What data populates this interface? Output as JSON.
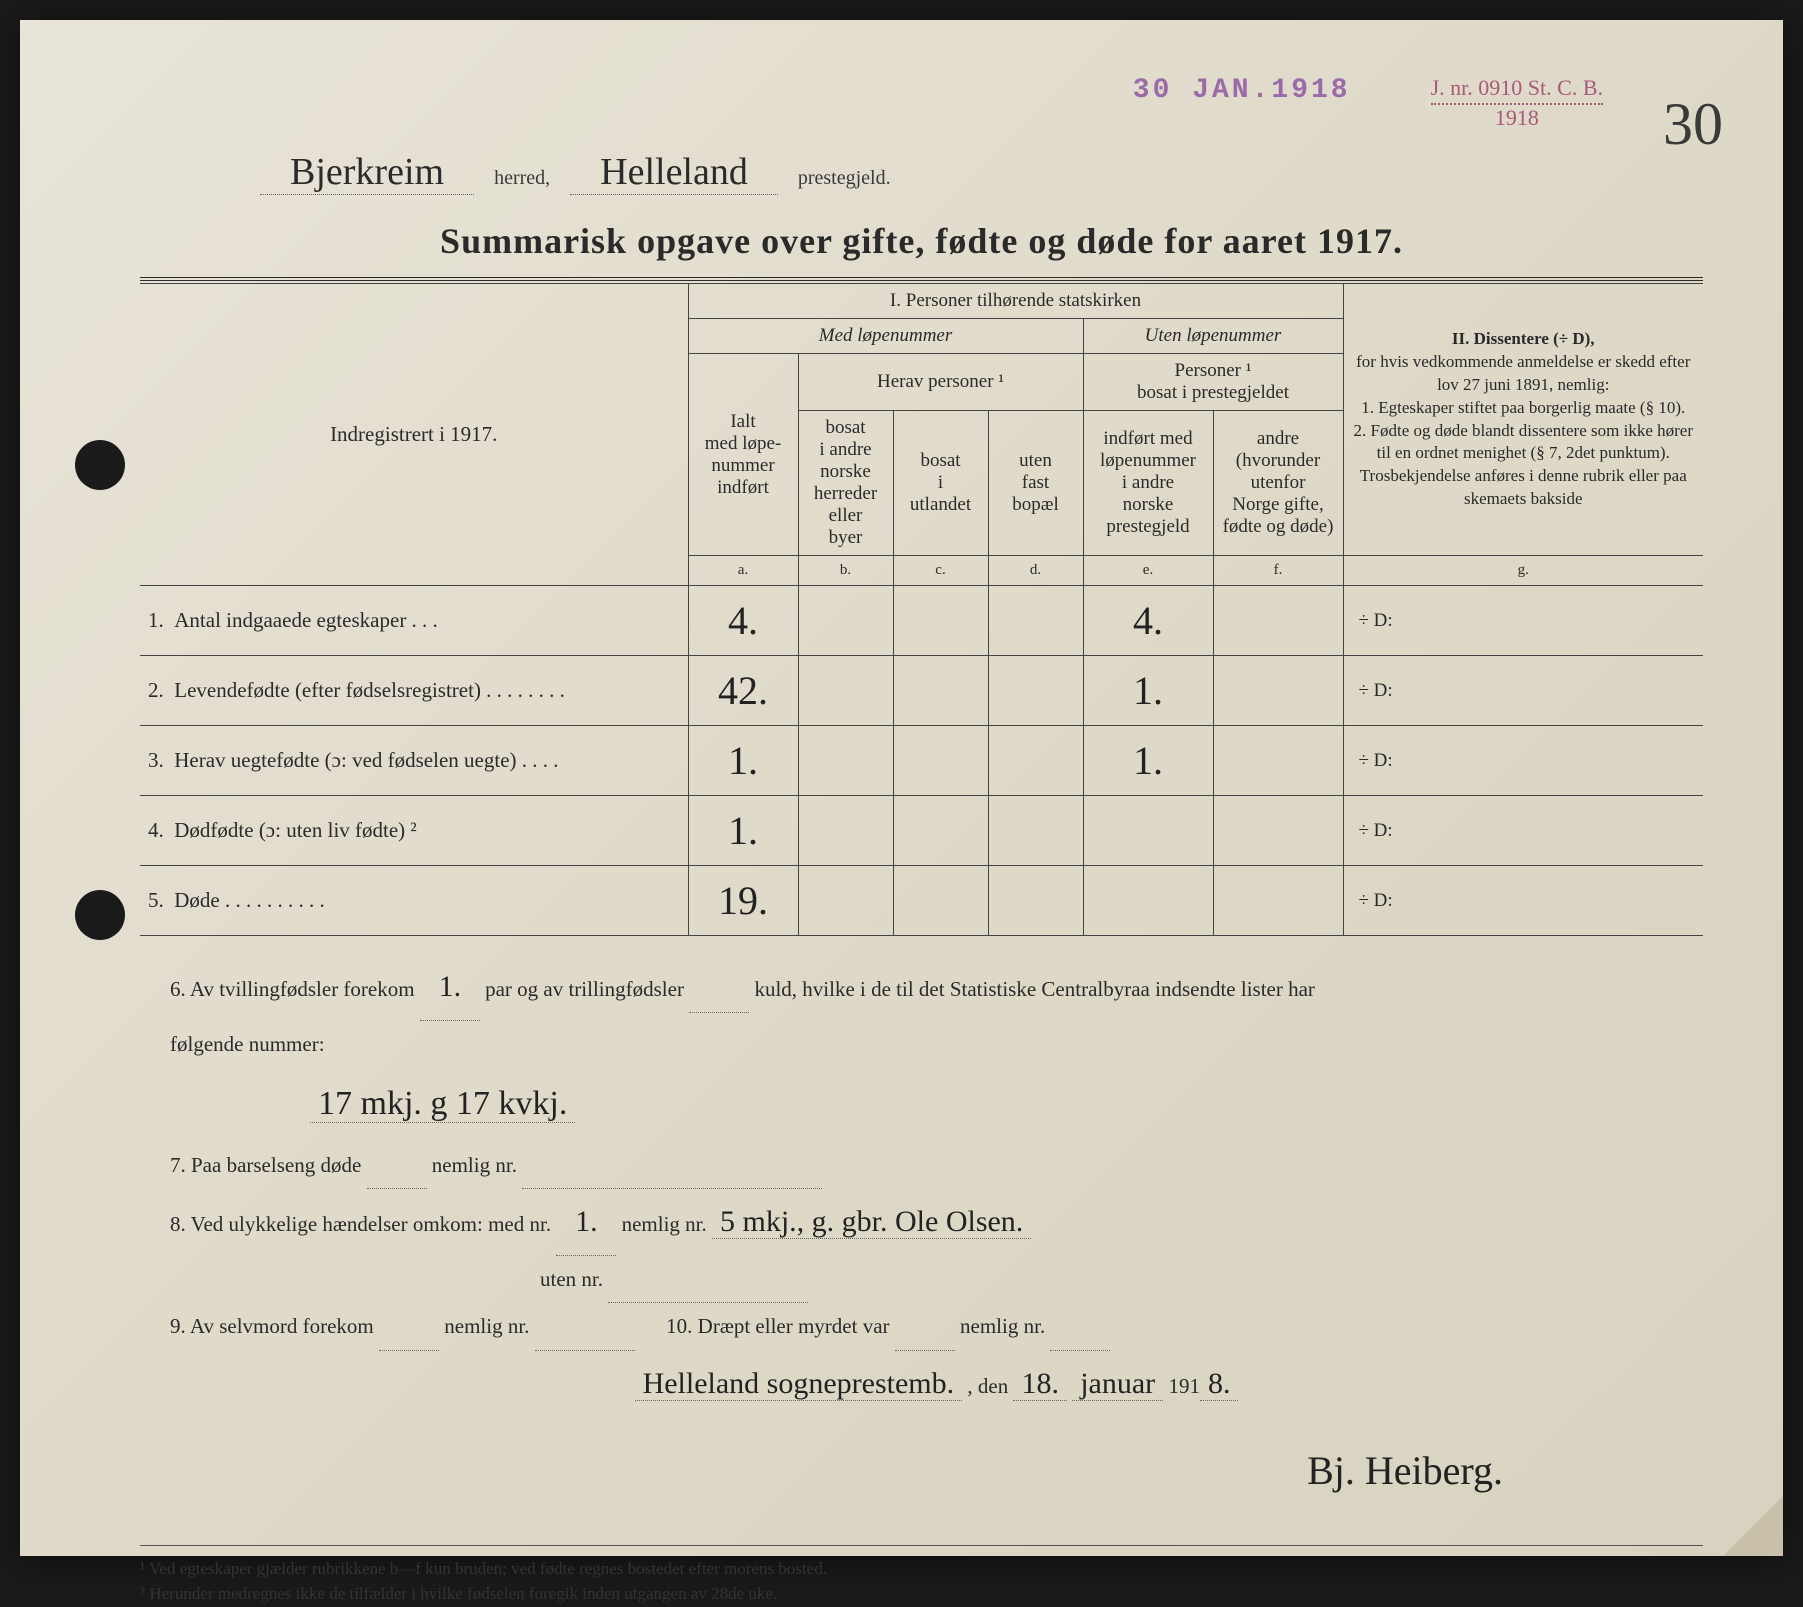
{
  "stamps": {
    "date": "30 JAN.1918",
    "jnr_top": "J. nr. 0910 St. C. B.",
    "jnr_bottom": "1918"
  },
  "page_number": "30",
  "header": {
    "herred_value": "Bjerkreim",
    "herred_label": "herred,",
    "prestegjeld_value": "Helleland",
    "prestegjeld_label": "prestegjeld."
  },
  "title": "Summarisk opgave over gifte, fødte og døde for aaret 1917.",
  "table": {
    "left_header": "Indregistrert i 1917.",
    "section_I": "I.  Personer tilhørende statskirken",
    "med_lopenummer": "Med løpenummer",
    "uten_lopenummer": "Uten løpenummer",
    "herav_personer": "Herav personer ¹",
    "personer_bosat": "Personer ¹\nbosat i prestegjeldet",
    "section_II_title": "II.  Dissentere (÷ D),",
    "section_II_body": "for hvis vedkommende anmeldelse er skedd efter lov 27 juni 1891, nemlig:\n1. Egteskaper stiftet paa borgerlig maate (§ 10).\n2. Fødte og døde blandt dissentere som ikke hører til en ordnet menighet (§ 7, 2det punktum).\nTrosbekjendelse anføres i denne rubrik eller paa skemaets bakside",
    "col_a": "Ialt\nmed løpe-\nnummer\nindført",
    "col_b": "bosat\ni andre\nnorske\nherreder\neller\nbyer",
    "col_c": "bosat\ni\nutlandet",
    "col_d": "uten\nfast\nbopæl",
    "col_e": "indført med\nløpenummer\ni andre\nnorske\nprestegjeld",
    "col_f": "andre\n(hvorunder\nutenfor\nNorge gifte,\nfødte og døde)",
    "letters": {
      "a": "a.",
      "b": "b.",
      "c": "c.",
      "d": "d.",
      "e": "e.",
      "f": "f.",
      "g": "g."
    },
    "rows": [
      {
        "n": "1.",
        "label": "Antal indgaaede egteskaper  .  .  .",
        "a": "4.",
        "e": "4.",
        "g": "÷ D:"
      },
      {
        "n": "2.",
        "label": "Levendefødte (efter fødselsregistret)  .  .  .  .  .  .  .  .",
        "a": "42.",
        "e": "1.",
        "g": "÷ D:"
      },
      {
        "n": "3.",
        "label": "Herav uegtefødte (ɔ: ved fødselen uegte)  .  .  .  .",
        "a": "1.",
        "e": "1.",
        "g": "÷ D:"
      },
      {
        "n": "4.",
        "label": "Dødfødte (ɔ: uten liv fødte) ²",
        "a": "1.",
        "e": "",
        "g": "÷ D:"
      },
      {
        "n": "5.",
        "label": "Døde  .  .  .  .  .  .  .  .  .  .",
        "a": "19.",
        "e": "",
        "g": "÷ D:"
      }
    ]
  },
  "notes": {
    "q6_a": "6.   Av tvillingfødsler forekom",
    "q6_twins": "1.",
    "q6_b": "par og av trillingfødsler",
    "q6_c": "kuld, hvilke i de til det Statistiske Centralbyraa indsendte lister har",
    "q6_d": "følgende nummer:",
    "q6_value": "17 mkj.  g 17 kvkj.",
    "q7": "7.   Paa barselseng døde",
    "q7_b": "nemlig nr.",
    "q8_a": "8.   Ved ulykkelige hændelser omkom:  med nr.",
    "q8_med": "1.",
    "q8_b": "nemlig nr.",
    "q8_val": "5 mkj., g. gbr. Ole Olsen.",
    "q8_c": "uten nr.",
    "q9_a": "9.   Av selvmord forekom",
    "q9_b": "nemlig nr.",
    "q10_a": "10.  Dræpt eller myrdet var",
    "q10_b": "nemlig nr.",
    "place": "Helleland sogneprestemb.",
    "den": ", den",
    "date_day": "18.",
    "date_month": "januar",
    "date_year_prefix": "191",
    "date_year_suffix": "8.",
    "signature": "Bj. Heiberg."
  },
  "footnotes": {
    "f1": "¹ Ved egteskaper gjælder rubrikkene b—f kun bruden; ved fødte regnes bostedet efter morens bosted.",
    "f2": "² Herunder medregnes ikke de tilfælder i hvilke fødselen foregik inden utgangen av 28de uke."
  }
}
